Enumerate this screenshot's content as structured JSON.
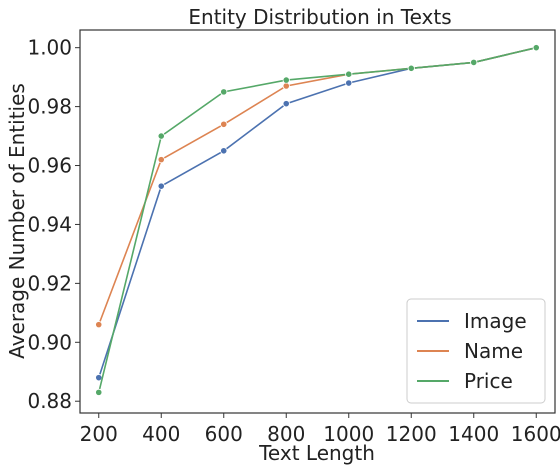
{
  "chart_data": {
    "type": "line",
    "title": "Entity Distribution in Texts",
    "xlabel": "Text Length",
    "ylabel": "Average Number of Entities",
    "x": [
      200,
      400,
      600,
      800,
      1000,
      1200,
      1400,
      1600
    ],
    "xlim": [
      140,
      1660
    ],
    "ylim": [
      0.876,
      1.006
    ],
    "xticks": [
      "200",
      "400",
      "600",
      "800",
      "1000",
      "1200",
      "1400",
      "1600"
    ],
    "yticks": [
      "0.88",
      "0.90",
      "0.92",
      "0.94",
      "0.96",
      "0.98",
      "1.00"
    ],
    "grid": false,
    "legend": "bottom-right",
    "series": [
      {
        "name": "Image",
        "color": "#4c72b0",
        "values": [
          0.888,
          0.953,
          0.965,
          0.981,
          0.988,
          0.993,
          0.995,
          1.0
        ]
      },
      {
        "name": "Name",
        "color": "#dd8452",
        "values": [
          0.906,
          0.962,
          0.974,
          0.987,
          0.991,
          0.993,
          0.995,
          1.0
        ]
      },
      {
        "name": "Price",
        "color": "#55a868",
        "values": [
          0.883,
          0.97,
          0.985,
          0.989,
          0.991,
          0.993,
          0.995,
          1.0
        ]
      }
    ]
  }
}
